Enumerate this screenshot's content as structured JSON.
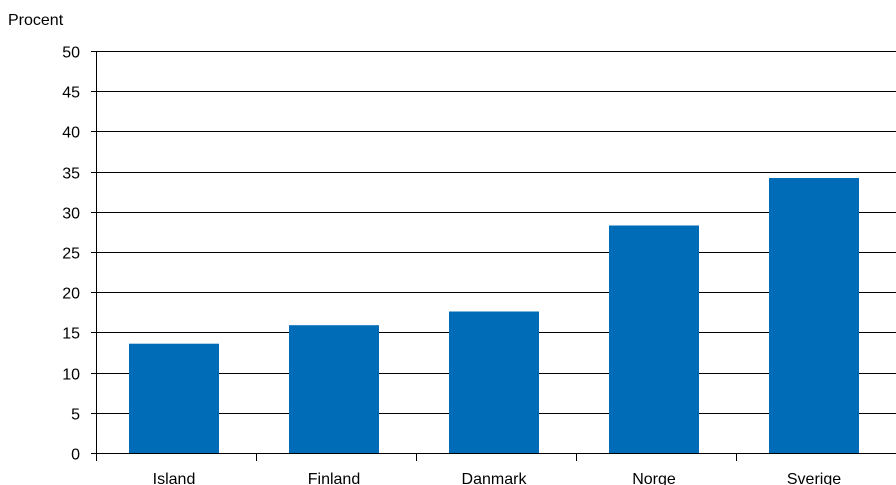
{
  "chart_data": {
    "type": "bar",
    "ylabel": "Procent",
    "categories": [
      "Island",
      "Finland",
      "Danmark",
      "Norge",
      "Sverige"
    ],
    "values": [
      13.6,
      15.9,
      17.6,
      28.3,
      34.2
    ],
    "ylim": [
      0,
      50
    ],
    "yticks": [
      0,
      5,
      10,
      15,
      20,
      25,
      30,
      35,
      40,
      45,
      50
    ],
    "grid": true,
    "bar_color": "#006bb6",
    "grid_color": "#000000"
  }
}
